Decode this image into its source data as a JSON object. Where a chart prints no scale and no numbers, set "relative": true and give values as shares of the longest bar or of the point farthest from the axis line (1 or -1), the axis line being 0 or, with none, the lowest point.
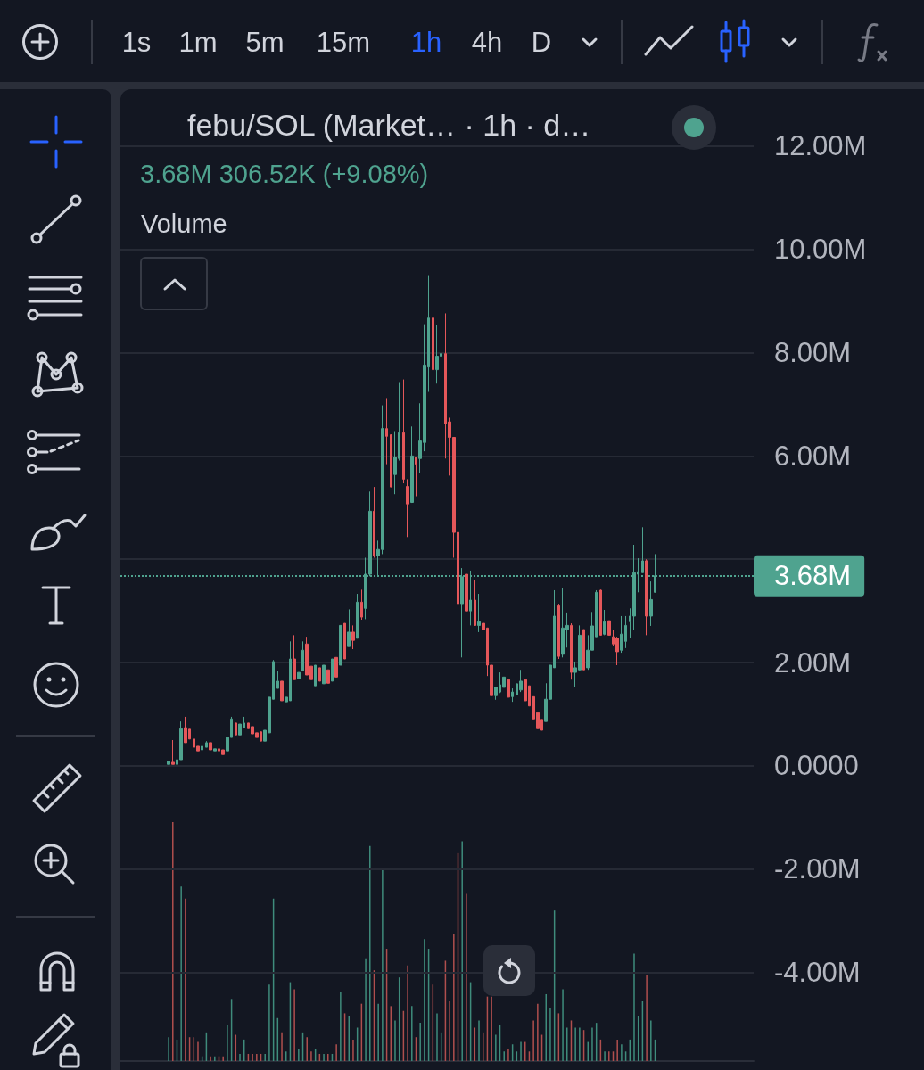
{
  "chart_data": [
    {
      "type": "candlestick",
      "title": "febu/SOL (Market… · 1h · d…",
      "subtitle": "3.68M 306.52K (+9.08%)",
      "categories": [
        null,
        null,
        null,
        null,
        null,
        null,
        null,
        null,
        null,
        null,
        null,
        null,
        null,
        null,
        null,
        null,
        null,
        null,
        null,
        null,
        null,
        null,
        null,
        null,
        null,
        null,
        null,
        null,
        null,
        null,
        null,
        null,
        null,
        null,
        null,
        null,
        null,
        null,
        null,
        null,
        null,
        null,
        null,
        null,
        null,
        null,
        null,
        null,
        null,
        null,
        null,
        null,
        null,
        null,
        null,
        null,
        null,
        null,
        null,
        null,
        null,
        null,
        null,
        null,
        null,
        null,
        null,
        null,
        null,
        null,
        null,
        null,
        null,
        null,
        null,
        null,
        null,
        null,
        null,
        null,
        null,
        null,
        null,
        null,
        null,
        null,
        null,
        null,
        null,
        null,
        null,
        null,
        null,
        null,
        null,
        null,
        null,
        null,
        null,
        null,
        null,
        null,
        null,
        null,
        null,
        null,
        null,
        null,
        null,
        null,
        null,
        null,
        null,
        null,
        null,
        null,
        null,
        null,
        null,
        null,
        null,
        null,
        null,
        null,
        null,
        null,
        null,
        null,
        null,
        null,
        null,
        null,
        null,
        null,
        null,
        null,
        null,
        null,
        null,
        null,
        null,
        null,
        null,
        null,
        null,
        null,
        null,
        null,
        null,
        null,
        null
      ],
      "ohlc": [
        null,
        null,
        null,
        null,
        null,
        null,
        null,
        null,
        null,
        null,
        null,
        [
          0.03,
          0.09,
          0.03,
          0.09
        ],
        [
          0.07,
          0.5,
          0.03,
          0.03
        ],
        [
          0.03,
          0.12,
          0.03,
          0.12
        ],
        [
          0.12,
          0.86,
          0.12,
          0.72
        ],
        [
          0.74,
          0.95,
          0.45,
          0.45
        ],
        [
          0.71,
          0.71,
          0.52,
          0.52
        ],
        [
          0.52,
          0.52,
          0.36,
          0.36
        ],
        [
          0.38,
          0.38,
          0.29,
          0.29
        ],
        [
          0.31,
          0.38,
          0.31,
          0.38
        ],
        [
          0.36,
          0.48,
          0.36,
          0.45
        ],
        [
          0.45,
          0.45,
          0.31,
          0.31
        ],
        [
          0.29,
          0.33,
          0.29,
          0.33
        ],
        [
          0.33,
          0.33,
          0.29,
          0.29
        ],
        [
          0.31,
          0.31,
          0.22,
          0.22
        ],
        [
          0.29,
          0.55,
          0.29,
          0.55
        ],
        [
          0.55,
          0.95,
          0.55,
          0.91
        ],
        [
          0.83,
          0.83,
          0.6,
          0.6
        ],
        [
          0.6,
          0.81,
          0.6,
          0.81
        ],
        [
          0.74,
          0.95,
          0.74,
          0.83
        ],
        [
          0.83,
          0.83,
          0.72,
          0.72
        ],
        [
          0.76,
          0.76,
          0.62,
          0.62
        ],
        [
          0.64,
          0.64,
          0.55,
          0.55
        ],
        [
          0.66,
          0.66,
          0.48,
          0.48
        ],
        [
          0.48,
          0.69,
          0.48,
          0.69
        ],
        [
          0.64,
          1.33,
          0.64,
          1.33
        ],
        [
          1.29,
          2.05,
          1.29,
          2.02
        ],
        [
          1.5,
          1.84,
          1.5,
          1.64
        ],
        [
          1.64,
          1.64,
          1.26,
          1.26
        ],
        [
          1.24,
          1.33,
          1.24,
          1.33
        ],
        [
          1.26,
          2.41,
          1.26,
          2.07
        ],
        [
          2.07,
          2.53,
          1.67,
          1.67
        ],
        [
          1.69,
          1.81,
          1.69,
          1.81
        ],
        [
          1.84,
          2.41,
          1.84,
          2.24
        ],
        [
          2.36,
          2.5,
          1.76,
          1.76
        ],
        [
          1.93,
          1.93,
          1.67,
          1.67
        ],
        [
          1.55,
          1.95,
          1.55,
          1.95
        ],
        [
          1.9,
          1.9,
          1.64,
          1.64
        ],
        [
          1.59,
          1.95,
          1.59,
          1.95
        ],
        [
          1.86,
          1.86,
          1.6,
          1.6
        ],
        [
          1.64,
          2.07,
          1.64,
          2.07
        ],
        [
          2.1,
          2.1,
          1.72,
          1.72
        ],
        [
          1.95,
          2.72,
          1.95,
          2.72
        ],
        [
          2.76,
          2.76,
          2.07,
          2.07
        ],
        [
          2.31,
          3.03,
          2.31,
          2.59
        ],
        [
          2.59,
          2.72,
          2.26,
          2.43
        ],
        [
          2.47,
          3.33,
          2.47,
          3.17
        ],
        [
          3.17,
          3.41,
          2.83,
          2.88
        ],
        [
          3.05,
          4.03,
          2.84,
          3.71
        ],
        [
          3.71,
          5.31,
          3.67,
          4.93
        ],
        [
          4.93,
          5.4,
          4.03,
          4.07
        ],
        [
          4.07,
          4.36,
          3.66,
          4.19
        ],
        [
          4.19,
          6.98,
          4.1,
          6.53
        ],
        [
          6.53,
          7.12,
          5.84,
          6.38
        ],
        [
          6.41,
          6.41,
          5.4,
          5.4
        ],
        [
          5.64,
          6.48,
          5.26,
          5.97
        ],
        [
          5.95,
          7.43,
          5.91,
          6.45
        ],
        [
          6.45,
          7.48,
          5.47,
          5.55
        ],
        [
          5.41,
          5.55,
          4.43,
          5.07
        ],
        [
          5.1,
          6.57,
          5.09,
          6.0
        ],
        [
          5.97,
          5.97,
          5.22,
          5.84
        ],
        [
          5.95,
          7.02,
          5.67,
          6.29
        ],
        [
          6.26,
          8.55,
          6.09,
          7.76
        ],
        [
          7.72,
          9.5,
          7.24,
          8.67
        ],
        [
          8.67,
          8.79,
          7.45,
          7.67
        ],
        [
          7.67,
          8.53,
          7.4,
          7.93
        ],
        [
          7.93,
          8.17,
          7.6,
          7.98
        ],
        [
          7.98,
          8.76,
          5.95,
          6.62
        ],
        [
          6.66,
          6.74,
          5.62,
          6.36
        ],
        [
          6.36,
          6.36,
          4.03,
          4.52
        ],
        [
          4.52,
          4.97,
          2.79,
          3.14
        ],
        [
          3.14,
          3.83,
          2.1,
          3.66
        ],
        [
          3.71,
          4.57,
          2.55,
          3.0
        ],
        [
          3.0,
          3.78,
          2.72,
          3.21
        ],
        [
          3.21,
          3.59,
          2.72,
          2.72
        ],
        [
          2.72,
          3.33,
          2.59,
          2.79
        ],
        [
          2.76,
          2.93,
          2.48,
          2.64
        ],
        [
          2.67,
          2.67,
          1.74,
          1.95
        ],
        [
          1.95,
          2.07,
          1.21,
          1.36
        ],
        [
          1.36,
          1.53,
          1.28,
          1.52
        ],
        [
          1.43,
          1.81,
          1.41,
          1.57
        ],
        [
          1.52,
          1.72,
          1.52,
          1.72
        ],
        [
          1.67,
          1.67,
          1.33,
          1.33
        ],
        [
          1.34,
          1.5,
          1.24,
          1.43
        ],
        [
          1.38,
          1.59,
          1.38,
          1.59
        ],
        [
          1.47,
          1.86,
          1.43,
          1.64
        ],
        [
          1.67,
          1.67,
          1.26,
          1.26
        ],
        [
          1.55,
          1.55,
          1.16,
          1.16
        ],
        [
          1.34,
          1.34,
          0.91,
          0.91
        ],
        [
          1.03,
          1.03,
          0.72,
          0.72
        ],
        [
          0.9,
          0.9,
          0.69,
          0.69
        ],
        [
          0.86,
          1.6,
          0.86,
          1.29
        ],
        [
          1.29,
          1.95,
          1.29,
          1.95
        ],
        [
          1.9,
          3.4,
          1.9,
          2.9
        ],
        [
          3.1,
          3.14,
          2.07,
          2.12
        ],
        [
          2.16,
          3.45,
          2.1,
          2.67
        ],
        [
          2.64,
          2.97,
          2.29,
          2.72
        ],
        [
          2.72,
          2.76,
          1.67,
          1.81
        ],
        [
          1.81,
          2.02,
          1.52,
          1.9
        ],
        [
          1.86,
          2.72,
          1.84,
          2.53
        ],
        [
          2.64,
          2.64,
          1.86,
          1.86
        ],
        [
          1.9,
          2.53,
          1.86,
          2.24
        ],
        [
          2.24,
          2.98,
          2.24,
          2.71
        ],
        [
          2.5,
          3.4,
          2.5,
          3.36
        ],
        [
          3.4,
          3.41,
          2.53,
          2.53
        ],
        [
          2.55,
          3.02,
          2.53,
          2.79
        ],
        [
          2.81,
          2.81,
          2.53,
          2.53
        ],
        [
          2.5,
          2.64,
          2.33,
          2.36
        ],
        [
          2.47,
          2.5,
          1.95,
          2.21
        ],
        [
          2.24,
          2.9,
          2.19,
          2.55
        ],
        [
          2.41,
          2.9,
          2.28,
          2.72
        ],
        [
          2.79,
          3.05,
          2.47,
          2.9
        ],
        [
          2.9,
          4.28,
          2.64,
          3.74
        ],
        [
          3.71,
          4.02,
          3.36,
          3.76
        ],
        [
          3.74,
          4.62,
          3.74,
          3.97
        ],
        [
          3.97,
          4.0,
          2.53,
          2.9
        ],
        [
          2.9,
          3.57,
          2.71,
          3.22
        ],
        [
          3.36,
          4.1,
          3.36,
          3.68
        ],
        null,
        null,
        null,
        null,
        null,
        null,
        null,
        null,
        null,
        null,
        null,
        null,
        null,
        null,
        null,
        null,
        null,
        null,
        null,
        null,
        null,
        null,
        null
      ],
      "colors": [
        null,
        null,
        null,
        null,
        null,
        null,
        null,
        null,
        null,
        null,
        null,
        "#4fa38f",
        "#e5575a",
        "#4fa38f",
        "#4fa38f",
        "#e5575a",
        "#e5575a",
        "#e5575a",
        "#e5575a",
        "#4fa38f",
        "#4fa38f",
        "#e5575a",
        "#4fa38f",
        "#e5575a",
        "#e5575a",
        "#4fa38f",
        "#4fa38f",
        "#e5575a",
        "#4fa38f",
        "#4fa38f",
        "#e5575a",
        "#e5575a",
        "#e5575a",
        "#e5575a",
        "#4fa38f",
        "#4fa38f",
        "#4fa38f",
        "#4fa38f",
        "#e5575a",
        "#4fa38f",
        "#4fa38f",
        "#e5575a",
        "#4fa38f",
        "#4fa38f",
        "#e5575a",
        "#e5575a",
        "#4fa38f",
        "#e5575a",
        "#4fa38f",
        "#e5575a",
        "#4fa38f",
        "#e5575a",
        "#4fa38f",
        "#e5575a",
        "#4fa38f",
        "#e5575a",
        "#4fa38f",
        "#e5575a",
        "#4fa38f",
        "#4fa38f",
        "#e5575a",
        "#4fa38f",
        "#4fa38f",
        "#e5575a",
        "#e5575a",
        "#4fa38f",
        "#4fa38f",
        "#e5575a",
        "#e5575a",
        "#4fa38f",
        "#e5575a",
        "#4fa38f",
        "#4fa38f",
        "#4fa38f",
        "#e5575a",
        "#4fa38f",
        "#4fa38f",
        "#e5575a",
        "#e5575a",
        "#e5575a",
        "#e5575a",
        "#4fa38f",
        "#e5575a",
        "#4fa38f",
        "#e5575a",
        "#4fa38f",
        "#e5575a",
        "#e5575a",
        "#e5575a",
        "#4fa38f",
        "#4fa38f",
        "#4fa38f",
        "#e5575a",
        "#4fa38f",
        "#4fa38f",
        "#4fa38f",
        "#e5575a",
        "#e5575a",
        "#e5575a",
        "#e5575a",
        "#e5575a",
        "#4fa38f",
        "#4fa38f",
        "#4fa38f",
        "#e5575a",
        "#4fa38f",
        "#4fa38f",
        "#e5575a",
        "#4fa38f",
        "#4fa38f",
        "#e5575a",
        "#4fa38f",
        "#4fa38f",
        "#4fa38f",
        "#e5575a",
        "#4fa38f",
        "#e5575a",
        "#e5575a",
        "#e5575a",
        "#4fa38f",
        "#4fa38f",
        "#4fa38f",
        "#4fa38f",
        "#4fa38f",
        "#4fa38f",
        "#e5575a",
        "#4fa38f",
        "#4fa38f",
        null,
        null,
        null,
        null,
        null,
        null,
        null,
        null,
        null,
        null,
        null,
        null,
        null,
        null,
        null,
        null,
        null,
        null,
        null,
        null,
        null,
        null,
        null
      ],
      "ylim": [
        -5.8,
        13.1
      ],
      "yticks": [
        {
          "value": -4,
          "label": "-4.00M"
        },
        {
          "value": -2,
          "label": "-2.00M"
        },
        {
          "value": 0,
          "label": "0.0000"
        },
        {
          "value": 2,
          "label": "2.00M"
        },
        {
          "value": 4,
          "label": null
        },
        {
          "value": 6,
          "label": "6.00M"
        },
        {
          "value": 8,
          "label": "8.00M"
        },
        {
          "value": 10,
          "label": "10.00M"
        },
        {
          "value": 12,
          "label": "12.00M"
        }
      ],
      "tick_labels": "y",
      "grid": "y",
      "ref_lines": [
        {
          "axis": "y",
          "value": 3.68,
          "label": "3.68M",
          "color": "#4fa38f",
          "line_style": "dotted"
        }
      ],
      "annotations": [
        "1s",
        "1m",
        "5m",
        "15m",
        "1h",
        "4h",
        "D"
      ]
    },
    {
      "type": "bar",
      "title": "Volume",
      "relative": true,
      "categories": [
        null,
        null,
        null,
        null,
        null,
        null,
        null,
        null,
        null,
        null,
        null,
        null,
        null,
        null,
        null,
        null,
        null,
        null,
        null,
        null,
        null,
        null,
        null,
        null,
        null,
        null,
        null,
        null,
        null,
        null,
        null,
        null,
        null,
        null,
        null,
        null,
        null,
        null,
        null,
        null,
        null,
        null,
        null,
        null,
        null,
        null,
        null,
        null,
        null,
        null,
        null,
        null,
        null,
        null,
        null,
        null,
        null,
        null,
        null,
        null,
        null,
        null,
        null,
        null,
        null,
        null,
        null,
        null,
        null,
        null,
        null,
        null,
        null,
        null,
        null,
        null,
        null,
        null,
        null,
        null,
        null,
        null,
        null,
        null,
        null,
        null,
        null,
        null,
        null,
        null,
        null,
        null,
        null,
        null,
        null,
        null,
        null,
        null,
        null,
        null,
        null,
        null,
        null,
        null,
        null,
        null,
        null,
        null,
        null,
        null,
        null,
        null,
        null,
        null,
        null,
        null,
        null,
        null,
        null,
        null,
        null,
        null,
        null,
        null,
        null,
        null,
        null,
        null,
        null,
        null,
        null,
        null,
        null,
        null,
        null,
        null,
        null,
        null,
        null,
        null,
        null,
        null,
        null,
        null,
        null,
        null,
        null,
        null,
        null,
        null,
        null
      ],
      "values": [
        null,
        null,
        null,
        null,
        null,
        null,
        null,
        null,
        null,
        null,
        null,
        0.1,
        1,
        0.09,
        0.73,
        0.68,
        0.1,
        0.1,
        0.08,
        0.02,
        0.12,
        0.02,
        0.02,
        0.02,
        0.02,
        0.15,
        0.26,
        0.11,
        0.03,
        0.09,
        0.03,
        0.03,
        0.03,
        0.03,
        0.03,
        0.32,
        0.68,
        0.18,
        0.12,
        0.04,
        0.33,
        0.3,
        0.05,
        0.12,
        0.1,
        0.04,
        0.05,
        0.03,
        0.03,
        0.03,
        0.03,
        0.07,
        0.29,
        0.2,
        0.19,
        0.09,
        0.14,
        0.24,
        0.43,
        0.9,
        0.38,
        0.24,
        0.8,
        0.47,
        0.23,
        0.17,
        0.35,
        0.21,
        0.4,
        0.23,
        0.1,
        0.16,
        0.51,
        0.47,
        0.32,
        0.2,
        0.12,
        0.42,
        0.25,
        0.53,
        0.87,
        0.92,
        0.7,
        0.33,
        0.14,
        0.17,
        0.12,
        0.27,
        0.27,
        0.11,
        0.15,
        0.04,
        0.05,
        0.07,
        0.04,
        0.08,
        0.08,
        0.04,
        0.17,
        0.24,
        0.11,
        0.28,
        0.22,
        0.63,
        0.2,
        0.3,
        0.14,
        0.17,
        0.14,
        0.14,
        0.13,
        0.08,
        0.14,
        0.16,
        0.09,
        0.04,
        0.04,
        0.04,
        0.09,
        0.07,
        0.04,
        0.09,
        0.45,
        0.19,
        0.25,
        0.36,
        0.17,
        0.09,
        null,
        null,
        null,
        null,
        null,
        null,
        null,
        null,
        null,
        null,
        null,
        null,
        null,
        null,
        null,
        null,
        null,
        null,
        null,
        null,
        null,
        null,
        null
      ],
      "colors": [
        null,
        null,
        null,
        null,
        null,
        null,
        null,
        null,
        null,
        null,
        null,
        "#3f8c7c",
        "#b04f4e",
        "#3f8c7c",
        "#3f8c7c",
        "#b04f4e",
        "#b04f4e",
        "#b04f4e",
        "#b04f4e",
        "#3f8c7c",
        "#3f8c7c",
        "#b04f4e",
        "#3f8c7c",
        "#b04f4e",
        "#b04f4e",
        "#3f8c7c",
        "#3f8c7c",
        "#b04f4e",
        "#3f8c7c",
        "#3f8c7c",
        "#b04f4e",
        "#b04f4e",
        "#b04f4e",
        "#b04f4e",
        "#3f8c7c",
        "#3f8c7c",
        "#3f8c7c",
        "#3f8c7c",
        "#b04f4e",
        "#3f8c7c",
        "#3f8c7c",
        "#b04f4e",
        "#3f8c7c",
        "#3f8c7c",
        "#b04f4e",
        "#b04f4e",
        "#3f8c7c",
        "#b04f4e",
        "#3f8c7c",
        "#b04f4e",
        "#3f8c7c",
        "#b04f4e",
        "#3f8c7c",
        "#b04f4e",
        "#3f8c7c",
        "#b04f4e",
        "#3f8c7c",
        "#b04f4e",
        "#3f8c7c",
        "#3f8c7c",
        "#b04f4e",
        "#3f8c7c",
        "#3f8c7c",
        "#b04f4e",
        "#b04f4e",
        "#3f8c7c",
        "#3f8c7c",
        "#b04f4e",
        "#b04f4e",
        "#3f8c7c",
        "#b04f4e",
        "#3f8c7c",
        "#3f8c7c",
        "#3f8c7c",
        "#b04f4e",
        "#3f8c7c",
        "#3f8c7c",
        "#b04f4e",
        "#b04f4e",
        "#b04f4e",
        "#b04f4e",
        "#3f8c7c",
        "#b04f4e",
        "#3f8c7c",
        "#b04f4e",
        "#3f8c7c",
        "#b04f4e",
        "#b04f4e",
        "#b04f4e",
        "#3f8c7c",
        "#3f8c7c",
        "#3f8c7c",
        "#b04f4e",
        "#3f8c7c",
        "#3f8c7c",
        "#3f8c7c",
        "#b04f4e",
        "#b04f4e",
        "#b04f4e",
        "#b04f4e",
        "#b04f4e",
        "#3f8c7c",
        "#3f8c7c",
        "#3f8c7c",
        "#b04f4e",
        "#3f8c7c",
        "#3f8c7c",
        "#b04f4e",
        "#3f8c7c",
        "#3f8c7c",
        "#b04f4e",
        "#3f8c7c",
        "#3f8c7c",
        "#3f8c7c",
        "#b04f4e",
        "#3f8c7c",
        "#b04f4e",
        "#b04f4e",
        "#b04f4e",
        "#3f8c7c",
        "#3f8c7c",
        "#3f8c7c",
        "#3f8c7c",
        "#3f8c7c",
        "#3f8c7c",
        "#b04f4e",
        "#3f8c7c",
        "#3f8c7c",
        null,
        null,
        null,
        null,
        null,
        null,
        null,
        null,
        null,
        null,
        null,
        null,
        null,
        null,
        null,
        null,
        null,
        null,
        null,
        null,
        null,
        null,
        null
      ]
    }
  ]
}
